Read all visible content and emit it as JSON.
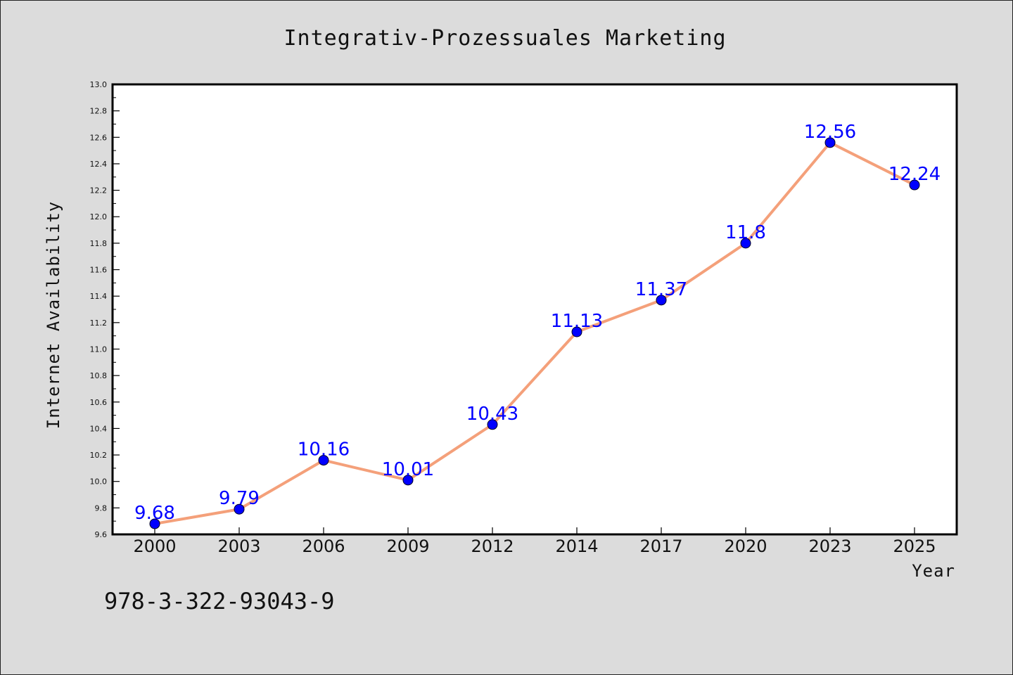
{
  "chart_data": {
    "type": "line",
    "title": "Integrativ-Prozessuales Marketing",
    "xlabel": "Year",
    "ylabel": "Internet Availability",
    "categories": [
      "2000",
      "2003",
      "2006",
      "2009",
      "2012",
      "2014",
      "2017",
      "2020",
      "2023",
      "2025"
    ],
    "series": [
      {
        "values": [
          9.68,
          9.79,
          10.16,
          10.01,
          10.43,
          11.13,
          11.37,
          11.8,
          12.56,
          12.24
        ],
        "data_labels": [
          "9.68",
          "9.79",
          "10.16",
          "10.01",
          "10.43",
          "11.13",
          "11.37",
          "11.8",
          "12.56",
          "12.24"
        ],
        "line_color": "#f4a07a",
        "marker_color": "#0000ff"
      }
    ],
    "ylim": [
      9.6,
      13.0
    ],
    "yticks": [
      "9.6",
      "9.8",
      "10.0",
      "10.2",
      "10.4",
      "10.6",
      "10.8",
      "11.0",
      "11.2",
      "11.4",
      "11.6",
      "11.8",
      "12.0",
      "12.2",
      "12.4",
      "12.6",
      "12.8",
      "13.0"
    ],
    "grid": false,
    "legend": "none"
  },
  "footer": {
    "isbn": "978-3-322-93043-9"
  }
}
